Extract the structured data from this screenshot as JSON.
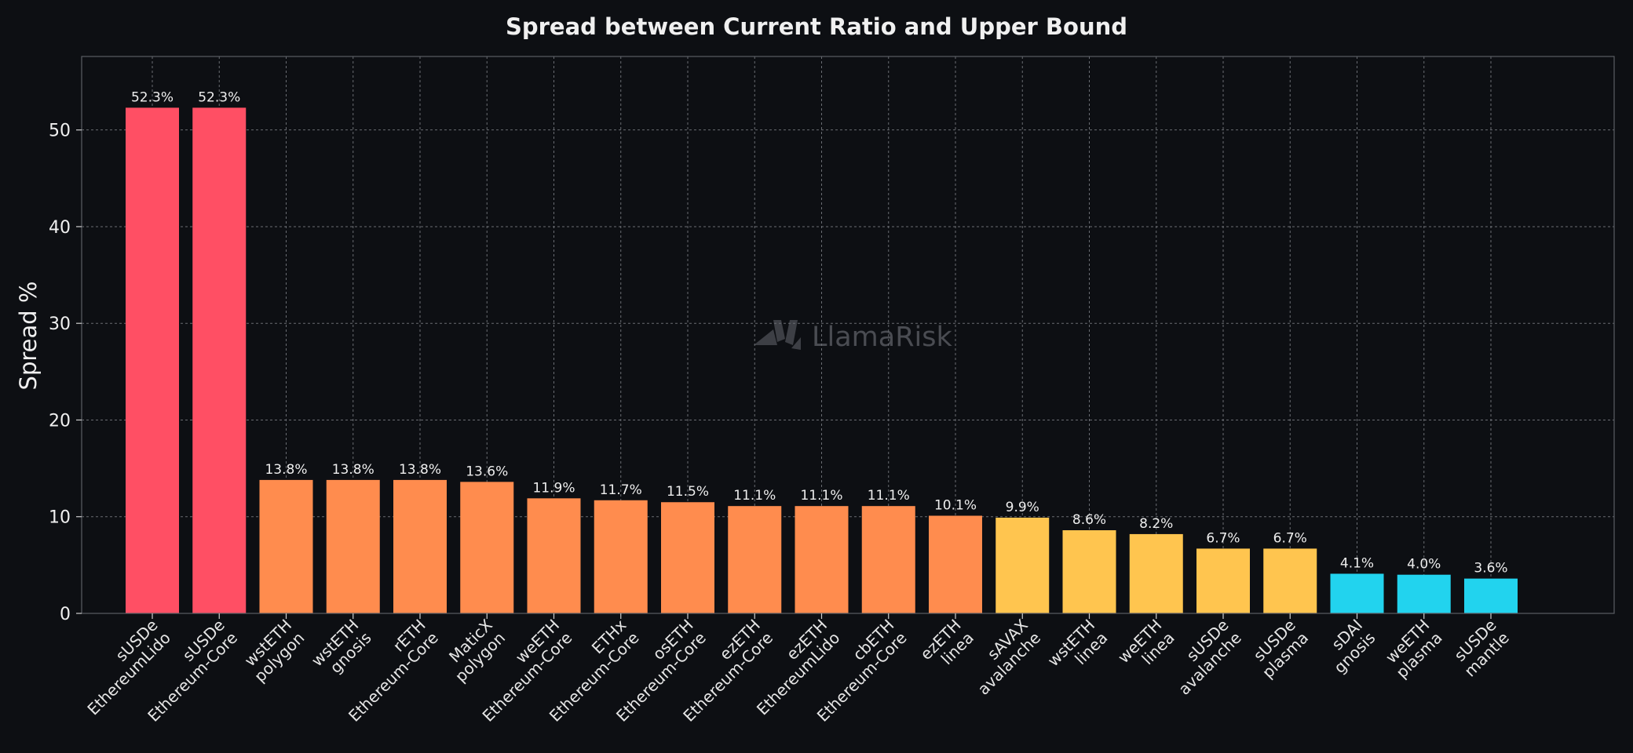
{
  "watermark": "LlamaRisk",
  "chart_data": {
    "type": "bar",
    "title": "Spread between Current Ratio and Upper Bound",
    "xlabel": "",
    "ylabel": "Spread %",
    "ylim": [
      0,
      57.6
    ],
    "yticks": [
      0,
      10,
      20,
      30,
      40,
      50
    ],
    "grid": true,
    "categories": [
      [
        "sUSDe",
        "EthereumLido"
      ],
      [
        "sUSDe",
        "Ethereum-Core"
      ],
      [
        "wstETH",
        "polygon"
      ],
      [
        "wstETH",
        "gnosis"
      ],
      [
        "rETH",
        "Ethereum-Core"
      ],
      [
        "MaticX",
        "polygon"
      ],
      [
        "weETH",
        "Ethereum-Core"
      ],
      [
        "ETHx",
        "Ethereum-Core"
      ],
      [
        "osETH",
        "Ethereum-Core"
      ],
      [
        "ezETH",
        "Ethereum-Core"
      ],
      [
        "ezETH",
        "EthereumLido"
      ],
      [
        "cbETH",
        "Ethereum-Core"
      ],
      [
        "ezETH",
        "linea"
      ],
      [
        "sAVAX",
        "avalanche"
      ],
      [
        "wstETH",
        "linea"
      ],
      [
        "weETH",
        "linea"
      ],
      [
        "sUSDe",
        "avalanche"
      ],
      [
        "sUSDe",
        "plasma"
      ],
      [
        "sDAI",
        "gnosis"
      ],
      [
        "weETH",
        "plasma"
      ],
      [
        "sUSDe",
        "mantle"
      ]
    ],
    "values": [
      52.3,
      52.3,
      13.8,
      13.8,
      13.8,
      13.6,
      11.9,
      11.7,
      11.5,
      11.1,
      11.1,
      11.1,
      10.1,
      9.9,
      8.6,
      8.2,
      6.7,
      6.7,
      4.1,
      4.0,
      3.6
    ],
    "data_labels": [
      "52.3%",
      "52.3%",
      "13.8%",
      "13.8%",
      "13.8%",
      "13.6%",
      "11.9%",
      "11.7%",
      "11.5%",
      "11.1%",
      "11.1%",
      "11.1%",
      "10.1%",
      "9.9%",
      "8.6%",
      "8.2%",
      "6.7%",
      "6.7%",
      "4.1%",
      "4.0%",
      "3.6%"
    ],
    "colors": {
      "red": "#ff4f64",
      "orange": "#ff8c4e",
      "yellow": "#ffc54f",
      "cyan": "#22d3ee",
      "background": "#0d0f13"
    },
    "bar_colors": [
      "red",
      "red",
      "orange",
      "orange",
      "orange",
      "orange",
      "orange",
      "orange",
      "orange",
      "orange",
      "orange",
      "orange",
      "orange",
      "yellow",
      "yellow",
      "yellow",
      "yellow",
      "yellow",
      "cyan",
      "cyan",
      "cyan"
    ]
  }
}
